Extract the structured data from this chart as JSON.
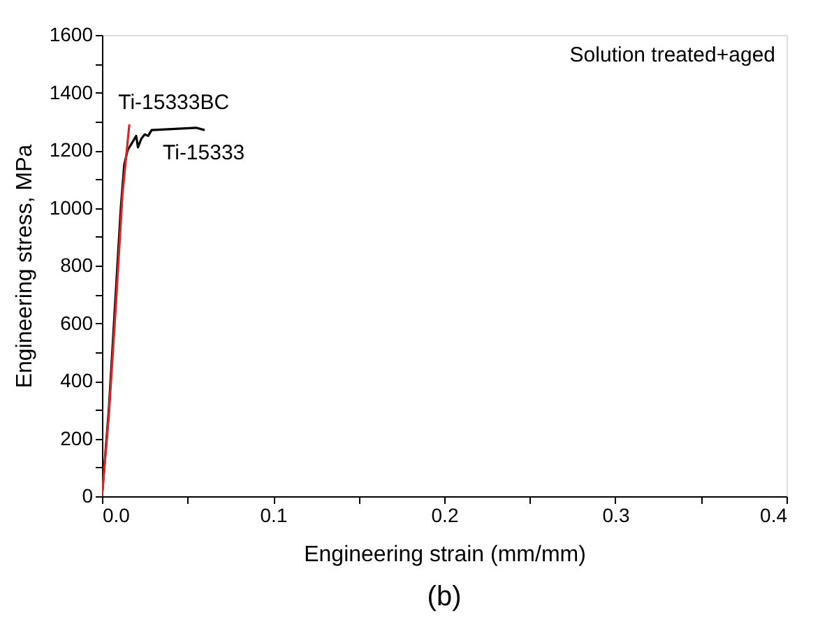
{
  "chart_data": {
    "type": "line",
    "xlabel": "Engineering strain (mm/mm)",
    "ylabel": "Engineering stress, MPa",
    "xlim": [
      0,
      0.4
    ],
    "xticks": [
      {
        "value": 0,
        "label": "0.0"
      },
      {
        "value": 0.05,
        "label": null
      },
      0.1,
      {
        "value": 0.15,
        "label": null
      },
      0.2,
      {
        "value": 0.25,
        "label": null
      },
      0.3,
      {
        "value": 0.35,
        "label": null
      },
      0.4
    ],
    "ylim": [
      0,
      1600
    ],
    "yticks": [
      0,
      {
        "value": 100,
        "label": null
      },
      200,
      {
        "value": 300,
        "label": null
      },
      400,
      {
        "value": 500,
        "label": null
      },
      600,
      {
        "value": 700,
        "label": null
      },
      800,
      {
        "value": 900,
        "label": null
      },
      1000,
      {
        "value": 1100,
        "label": null
      },
      1200,
      {
        "value": 1300,
        "label": null
      },
      1400,
      {
        "value": 1500,
        "label": null
      },
      1600
    ],
    "grid": false,
    "marker": "none",
    "line_style": "solid",
    "annotations": [
      "Solution treated+aged",
      "(b)"
    ],
    "series": [
      {
        "name": "Ti-15333",
        "color": "#000000",
        "x": [
          0,
          0.004,
          0.008,
          0.011,
          0.013,
          0.015,
          0.018,
          0.02,
          0.021,
          0.023,
          0.025,
          0.027,
          0.029,
          0.035,
          0.045,
          0.055,
          0.06
        ],
        "values": [
          0,
          300,
          700,
          1000,
          1150,
          1200,
          1230,
          1250,
          1210,
          1240,
          1255,
          1250,
          1270,
          1272,
          1275,
          1278,
          1270
        ]
      },
      {
        "name": "Ti-15333BC",
        "color": "#d62728",
        "x": [
          0,
          0.004,
          0.008,
          0.012,
          0.015,
          0.016
        ],
        "values": [
          0,
          280,
          650,
          1050,
          1230,
          1290
        ]
      }
    ]
  }
}
